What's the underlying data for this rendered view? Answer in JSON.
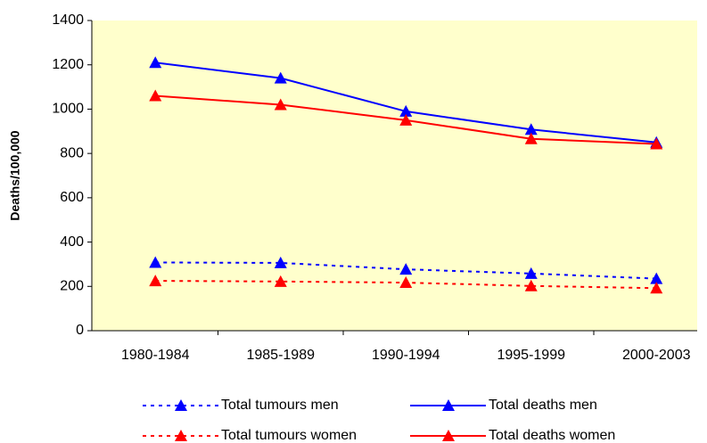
{
  "chart_data": {
    "type": "line",
    "y_label": "Deaths/100,000",
    "categories": [
      "1980-1984",
      "1985-1989",
      "1990-1994",
      "1995-1999",
      "2000-2003"
    ],
    "series": [
      {
        "name": "Total tumours men",
        "color": "#0000ff",
        "dashed": true,
        "values": [
          308,
          306,
          277,
          258,
          235
        ]
      },
      {
        "name": "Total deaths men",
        "color": "#0000ff",
        "dashed": false,
        "values": [
          1210,
          1140,
          990,
          908,
          850
        ]
      },
      {
        "name": "Total tumours women",
        "color": "#ff0000",
        "dashed": true,
        "values": [
          225,
          222,
          217,
          202,
          192
        ]
      },
      {
        "name": "Total deaths women",
        "color": "#ff0000",
        "dashed": false,
        "values": [
          1060,
          1020,
          950,
          866,
          843
        ]
      }
    ],
    "ylim": [
      0,
      1400
    ],
    "yticks": [
      0,
      200,
      400,
      600,
      800,
      1000,
      1200,
      1400
    ],
    "plot_background": "#ffffcc"
  }
}
